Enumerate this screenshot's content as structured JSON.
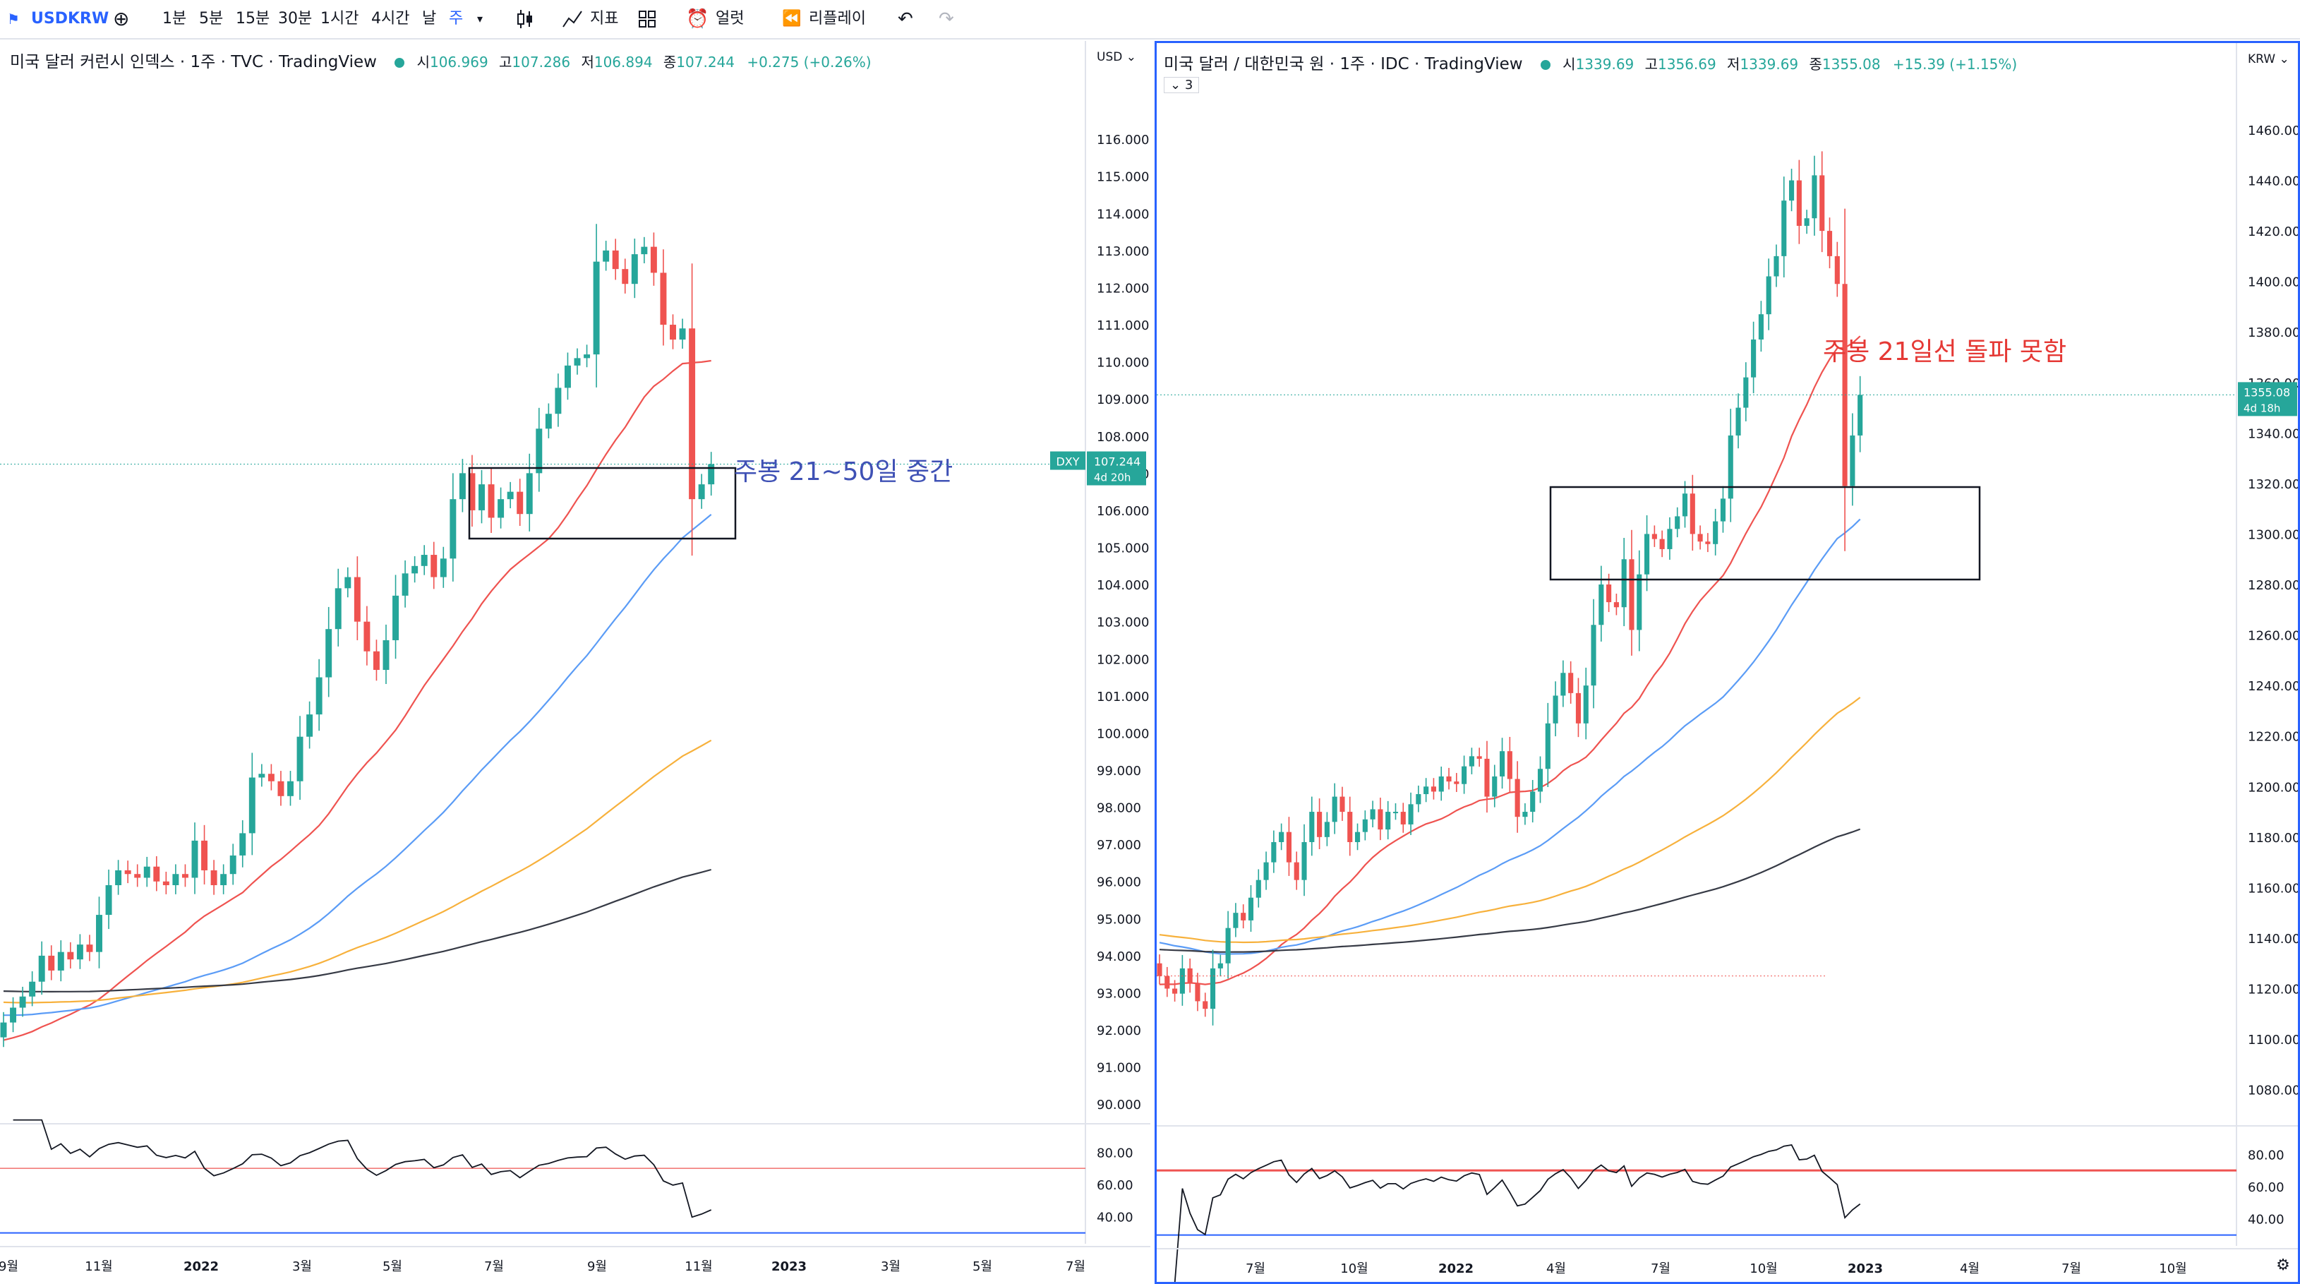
{
  "toolbar": {
    "symbol": "USDKRW",
    "intervals": [
      "1분",
      "5분",
      "15분",
      "30분",
      "1시간",
      "4시간",
      "날",
      "주"
    ],
    "indicators": "지표",
    "alert": "얼럿",
    "replay": "리플레이"
  },
  "left": {
    "title": "미국 달러 커런시 인덱스 · 1주 · TVC · TradingView",
    "ohlc": {
      "o_label": "시",
      "o": "106.969",
      "h_label": "고",
      "h": "107.286",
      "l_label": "저",
      "l": "106.894",
      "c_label": "종",
      "c": "107.244",
      "change": "+0.275 (+0.26%)"
    },
    "currency": "USD",
    "price_tag": {
      "symbol": "DXY",
      "value": "107.244",
      "countdown": "4d 20h"
    },
    "annotation": "주봉 21~50일 중간",
    "rsi_labels": [
      "80.00",
      "60.00",
      "40.00"
    ]
  },
  "right": {
    "title": "미국 달러 / 대한민국 원 · 1주 · IDC · TradingView",
    "ohlc": {
      "o_label": "시",
      "o": "1339.69",
      "h_label": "고",
      "h": "1356.69",
      "l_label": "저",
      "l": "1339.69",
      "c_label": "종",
      "c": "1355.08",
      "change": "+15.39 (+1.15%)"
    },
    "currency": "KRW",
    "badge": "3",
    "price_tag": {
      "value": "1355.08",
      "countdown": "4d 18h"
    },
    "annotation": "주봉 21일선 돌파 못함",
    "rsi_labels": [
      "80.00",
      "60.00",
      "40.00"
    ]
  },
  "colors": {
    "up": "#26a69a",
    "down": "#ef5350",
    "ma21": "#ef5350",
    "ma50": "#5b9cf6",
    "ma100": "#f7b13c",
    "ma200": "#363a45",
    "accent": "#2962ff",
    "annotation_left": "#3f51b5",
    "annotation_right": "#e53935"
  },
  "chart_data": [
    {
      "type": "candlestick",
      "title": "미국 달러 커런시 인덱스 · 1주 · TVC · TradingView",
      "yaxis_ticks": [
        "116.000",
        "115.000",
        "114.000",
        "113.000",
        "112.000",
        "111.000",
        "110.000",
        "109.000",
        "108.000",
        "107.000",
        "106.000",
        "105.000",
        "104.000",
        "103.000",
        "102.000",
        "101.000",
        "100.000",
        "99.000",
        "98.000",
        "97.000",
        "96.000",
        "95.000",
        "94.000",
        "93.000",
        "92.000",
        "91.000",
        "90.000"
      ],
      "ylim": [
        89.7,
        117.6
      ],
      "xaxis_labels": [
        "9월",
        "11월",
        "2022",
        "3월",
        "5월",
        "7월",
        "9월",
        "11월",
        "2023",
        "3월",
        "5월",
        "7월"
      ],
      "current_price": 107.244,
      "closes": [
        92.2,
        92.6,
        92.9,
        93.3,
        94.0,
        93.6,
        94.1,
        93.9,
        94.3,
        94.1,
        95.1,
        95.9,
        96.3,
        96.2,
        96.1,
        96.4,
        96.0,
        95.9,
        96.2,
        96.1,
        97.1,
        96.3,
        95.9,
        96.2,
        96.7,
        97.3,
        98.8,
        98.9,
        98.7,
        98.3,
        98.7,
        99.9,
        100.5,
        101.5,
        102.8,
        103.9,
        104.2,
        103.0,
        102.2,
        101.7,
        102.5,
        103.7,
        104.3,
        104.5,
        104.8,
        104.2,
        104.7,
        106.3,
        107.0,
        106.0,
        106.7,
        105.8,
        106.3,
        106.5,
        105.9,
        107.0,
        108.2,
        108.6,
        109.3,
        109.9,
        110.1,
        110.2,
        112.7,
        113.0,
        112.5,
        112.1,
        112.9,
        113.1,
        112.4,
        111.0,
        110.6,
        110.9,
        106.3,
        106.7,
        107.244
      ]
    },
    {
      "type": "candlestick",
      "title": "미국 달러 / 대한민국 원 · 1주 · IDC · TradingView",
      "yaxis_ticks": [
        "1460.00",
        "1440.00",
        "1420.00",
        "1400.00",
        "1380.00",
        "1360.00",
        "1340.00",
        "1320.00",
        "1300.00",
        "1280.00",
        "1260.00",
        "1240.00",
        "1220.00",
        "1200.00",
        "1180.00",
        "1160.00",
        "1140.00",
        "1120.00",
        "1100.00",
        "1080.00"
      ],
      "ylim": [
        1069,
        1479
      ],
      "xaxis_labels": [
        "7월",
        "10월",
        "2022",
        "4월",
        "7월",
        "10월",
        "2023",
        "4월",
        "7월",
        "10월"
      ],
      "current_price": 1355.08,
      "closes": [
        1125,
        1120,
        1118,
        1128,
        1122,
        1115,
        1112,
        1128,
        1130,
        1144,
        1150,
        1147,
        1156,
        1163,
        1170,
        1178,
        1182,
        1170,
        1163,
        1178,
        1190,
        1180,
        1186,
        1196,
        1190,
        1178,
        1182,
        1187,
        1191,
        1183,
        1190,
        1190,
        1185,
        1193,
        1197,
        1200,
        1198,
        1204,
        1202,
        1201,
        1208,
        1212,
        1211,
        1196,
        1204,
        1214,
        1203,
        1188,
        1190,
        1198,
        1207,
        1225,
        1236,
        1245,
        1237,
        1225,
        1240,
        1264,
        1280,
        1273,
        1271,
        1290,
        1262,
        1284,
        1300,
        1298,
        1294,
        1302,
        1307,
        1316,
        1300,
        1297,
        1296,
        1305,
        1314,
        1339,
        1350,
        1362,
        1377,
        1387,
        1402,
        1410,
        1432,
        1440,
        1422,
        1425,
        1442,
        1420,
        1410,
        1399,
        1319,
        1339,
        1355.08
      ]
    }
  ]
}
